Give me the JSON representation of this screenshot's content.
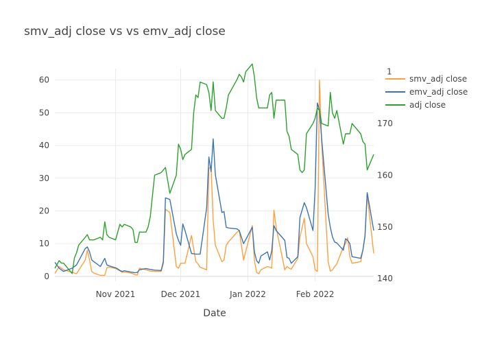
{
  "chart_data": {
    "type": "line",
    "title": "smv_adj close vs vs emv_adj close",
    "xlabel": "Date",
    "ylabel": "",
    "x_ticks": [
      {
        "label": "Nov 2021",
        "date": "2021-11-01"
      },
      {
        "label": "Dec 2021",
        "date": "2021-12-01"
      },
      {
        "label": "Jan 2022",
        "date": "2022-01-01"
      },
      {
        "label": "Feb 2022",
        "date": "2022-02-01"
      }
    ],
    "xlim": [
      "2021-10-04",
      "2022-02-28"
    ],
    "y_left": {
      "ylim": [
        -1.5,
        63.5
      ],
      "ticks": [
        0,
        10,
        20,
        30,
        40,
        50,
        60
      ]
    },
    "y_right": {
      "ylim": [
        139.5,
        180.6
      ],
      "ticks": [
        140,
        150,
        160,
        170
      ],
      "top_tick_label": "1"
    },
    "legend_position": "top-right",
    "grid": true,
    "series": [
      {
        "name": "smv_adj close",
        "color": "#ff9f3e",
        "axis": "left",
        "x": [
          "2021-10-04",
          "2021-10-06",
          "2021-10-08",
          "2021-10-12",
          "2021-10-14",
          "2021-10-18",
          "2021-10-19",
          "2021-10-20",
          "2021-10-21",
          "2021-10-22",
          "2021-10-25",
          "2021-10-27",
          "2021-10-28",
          "2021-10-29",
          "2021-11-01",
          "2021-11-02",
          "2021-11-03",
          "2021-11-04",
          "2021-11-05",
          "2021-11-08",
          "2021-11-09",
          "2021-11-10",
          "2021-11-11",
          "2021-11-12",
          "2021-11-15",
          "2021-11-17",
          "2021-11-19",
          "2021-11-22",
          "2021-11-23",
          "2021-11-24",
          "2021-11-26",
          "2021-11-29",
          "2021-11-30",
          "2021-12-01",
          "2021-12-02",
          "2021-12-03",
          "2021-12-06",
          "2021-12-08",
          "2021-12-09",
          "2021-12-10",
          "2021-12-13",
          "2021-12-14",
          "2021-12-15",
          "2021-12-16",
          "2021-12-17",
          "2021-12-20",
          "2021-12-21",
          "2021-12-22",
          "2021-12-23",
          "2021-12-27",
          "2021-12-28",
          "2021-12-30",
          "2022-01-03",
          "2022-01-04",
          "2022-01-05",
          "2022-01-06",
          "2022-01-07",
          "2022-01-10",
          "2022-01-11",
          "2022-01-12",
          "2022-01-13",
          "2022-01-14",
          "2022-01-18",
          "2022-01-19",
          "2022-01-20",
          "2022-01-21",
          "2022-01-24",
          "2022-01-25",
          "2022-01-27",
          "2022-01-28",
          "2022-01-31",
          "2022-02-01",
          "2022-02-02",
          "2022-02-03",
          "2022-02-04",
          "2022-02-07",
          "2022-02-08",
          "2022-02-09",
          "2022-02-10",
          "2022-02-11",
          "2022-02-14",
          "2022-02-15",
          "2022-02-16",
          "2022-02-17",
          "2022-02-18",
          "2022-02-22",
          "2022-02-23",
          "2022-02-24",
          "2022-02-25",
          "2022-02-28"
        ],
        "y": [
          0.9,
          3.0,
          2.0,
          1.2,
          0.8,
          5.0,
          8.0,
          5.0,
          1.5,
          1.0,
          0.3,
          0.3,
          2.6,
          2.8,
          2.4,
          2.0,
          1.7,
          1.2,
          1.3,
          1.0,
          0.8,
          0.5,
          0.4,
          2.5,
          2.0,
          1.6,
          1.5,
          1.5,
          4.0,
          20.5,
          19.5,
          3.0,
          2.5,
          4.0,
          4.0,
          4.0,
          12.5,
          4.5,
          3.8,
          2.8,
          2.0,
          33.0,
          33.5,
          17.0,
          9.5,
          4.5,
          5.0,
          9.5,
          10.5,
          13.5,
          14.0,
          5.0,
          15.5,
          5.0,
          1.2,
          0.8,
          2.0,
          3.0,
          2.8,
          2.5,
          20.2,
          15.0,
          2.0,
          3.0,
          2.5,
          2.2,
          5.5,
          12.0,
          17.8,
          10.0,
          6.0,
          2.0,
          1.5,
          60.0,
          41.0,
          4.5,
          1.6,
          2.0,
          3.0,
          3.8,
          9.0,
          10.0,
          11.8,
          6.0,
          4.0,
          4.5,
          8.0,
          12.0,
          25.0,
          7.0
        ]
      },
      {
        "name": "emv_adj close",
        "color": "#3a73b4",
        "axis": "left",
        "x": [
          "2021-10-04",
          "2021-10-06",
          "2021-10-08",
          "2021-10-12",
          "2021-10-14",
          "2021-10-18",
          "2021-10-19",
          "2021-10-20",
          "2021-10-21",
          "2021-10-22",
          "2021-10-25",
          "2021-10-27",
          "2021-10-28",
          "2021-10-29",
          "2021-11-01",
          "2021-11-02",
          "2021-11-03",
          "2021-11-04",
          "2021-11-05",
          "2021-11-08",
          "2021-11-09",
          "2021-11-10",
          "2021-11-11",
          "2021-11-12",
          "2021-11-15",
          "2021-11-17",
          "2021-11-19",
          "2021-11-22",
          "2021-11-23",
          "2021-11-24",
          "2021-11-26",
          "2021-11-29",
          "2021-11-30",
          "2021-12-01",
          "2021-12-02",
          "2021-12-03",
          "2021-12-06",
          "2021-12-08",
          "2021-12-09",
          "2021-12-10",
          "2021-12-13",
          "2021-12-14",
          "2021-12-15",
          "2021-12-16",
          "2021-12-17",
          "2021-12-20",
          "2021-12-21",
          "2021-12-22",
          "2021-12-23",
          "2021-12-27",
          "2021-12-28",
          "2021-12-30",
          "2022-01-03",
          "2022-01-04",
          "2022-01-05",
          "2022-01-06",
          "2022-01-07",
          "2022-01-10",
          "2022-01-11",
          "2022-01-12",
          "2022-01-13",
          "2022-01-14",
          "2022-01-18",
          "2022-01-19",
          "2022-01-20",
          "2022-01-21",
          "2022-01-24",
          "2022-01-25",
          "2022-01-27",
          "2022-01-28",
          "2022-01-31",
          "2022-02-01",
          "2022-02-02",
          "2022-02-03",
          "2022-02-04",
          "2022-02-07",
          "2022-02-08",
          "2022-02-09",
          "2022-02-10",
          "2022-02-11",
          "2022-02-14",
          "2022-02-15",
          "2022-02-16",
          "2022-02-17",
          "2022-02-18",
          "2022-02-22",
          "2022-02-23",
          "2022-02-24",
          "2022-02-25",
          "2022-02-28"
        ],
        "y": [
          4.3,
          2.5,
          1.5,
          2.5,
          3.5,
          8.5,
          9.0,
          7.5,
          5.0,
          4.5,
          3.0,
          5.5,
          3.5,
          3.2,
          2.6,
          2.3,
          1.8,
          1.5,
          1.7,
          1.3,
          1.2,
          1.1,
          1.2,
          2.0,
          2.4,
          2.1,
          1.9,
          1.8,
          4.5,
          24.0,
          23.5,
          13.0,
          11.0,
          9.5,
          16.0,
          14.0,
          7.0,
          6.8,
          6.8,
          6.8,
          21.0,
          36.5,
          32.0,
          42.0,
          31.0,
          19.5,
          19.8,
          15.0,
          14.8,
          14.5,
          14.0,
          10.0,
          15.0,
          7.5,
          4.8,
          4.0,
          6.2,
          7.5,
          5.0,
          7.8,
          15.5,
          14.0,
          11.0,
          5.8,
          5.5,
          4.0,
          6.0,
          18.0,
          22.5,
          21.0,
          14.0,
          27.0,
          53.0,
          51.0,
          42.0,
          19.0,
          15.0,
          12.0,
          10.5,
          10.2,
          8.0,
          11.5,
          11.0,
          10.0,
          6.0,
          5.5,
          8.0,
          12.5,
          25.6,
          14.0
        ]
      },
      {
        "name": "adj close",
        "color": "#2ca02c",
        "axis": "right",
        "x": [
          "2021-10-04",
          "2021-10-06",
          "2021-10-07",
          "2021-10-08",
          "2021-10-11",
          "2021-10-12",
          "2021-10-13",
          "2021-10-14",
          "2021-10-15",
          "2021-10-18",
          "2021-10-19",
          "2021-10-20",
          "2021-10-21",
          "2021-10-22",
          "2021-10-25",
          "2021-10-26",
          "2021-10-27",
          "2021-10-28",
          "2021-10-29",
          "2021-11-01",
          "2021-11-02",
          "2021-11-03",
          "2021-11-04",
          "2021-11-05",
          "2021-11-08",
          "2021-11-09",
          "2021-11-10",
          "2021-11-11",
          "2021-11-12",
          "2021-11-15",
          "2021-11-16",
          "2021-11-17",
          "2021-11-18",
          "2021-11-19",
          "2021-11-22",
          "2021-11-23",
          "2021-11-24",
          "2021-11-26",
          "2021-11-29",
          "2021-11-30",
          "2021-12-01",
          "2021-12-02",
          "2021-12-03",
          "2021-12-06",
          "2021-12-07",
          "2021-12-08",
          "2021-12-09",
          "2021-12-10",
          "2021-12-13",
          "2021-12-14",
          "2021-12-15",
          "2021-12-16",
          "2021-12-17",
          "2021-12-20",
          "2021-12-21",
          "2021-12-22",
          "2021-12-23",
          "2021-12-27",
          "2021-12-28",
          "2021-12-29",
          "2021-12-30",
          "2021-12-31",
          "2022-01-03",
          "2022-01-04",
          "2022-01-05",
          "2022-01-06",
          "2022-01-07",
          "2022-01-10",
          "2022-01-11",
          "2022-01-12",
          "2022-01-13",
          "2022-01-14",
          "2022-01-18",
          "2022-01-19",
          "2022-01-20",
          "2022-01-21",
          "2022-01-24",
          "2022-01-25",
          "2022-01-26",
          "2022-01-27",
          "2022-01-28",
          "2022-01-31",
          "2022-02-01",
          "2022-02-02",
          "2022-02-03",
          "2022-02-04",
          "2022-02-07",
          "2022-02-08",
          "2022-02-09",
          "2022-02-10",
          "2022-02-11",
          "2022-02-14",
          "2022-02-15",
          "2022-02-16",
          "2022-02-17",
          "2022-02-18",
          "2022-02-22",
          "2022-02-23",
          "2022-02-24",
          "2022-02-25",
          "2022-02-28"
        ],
        "y": [
          142.0,
          143.5,
          143.0,
          143.0,
          141.5,
          141.0,
          144.0,
          145.0,
          146.5,
          148.0,
          148.5,
          147.5,
          147.5,
          147.5,
          148.0,
          147.5,
          151.0,
          148.5,
          148.0,
          147.5,
          149.0,
          150.5,
          150.0,
          150.5,
          150.0,
          149.5,
          147.0,
          147.0,
          149.0,
          149.0,
          150.0,
          152.0,
          156.0,
          160.0,
          160.5,
          161.0,
          161.5,
          156.5,
          160.0,
          166.0,
          165.0,
          163.0,
          164.0,
          165.0,
          172.0,
          175.5,
          175.0,
          178.0,
          177.5,
          176.0,
          172.5,
          178.0,
          172.5,
          171.0,
          171.0,
          173.0,
          175.5,
          178.5,
          179.5,
          179.0,
          178.0,
          180.0,
          181.5,
          179.0,
          175.0,
          173.0,
          173.0,
          173.0,
          175.5,
          176.0,
          171.0,
          174.5,
          174.5,
          168.5,
          167.5,
          165.0,
          164.0,
          161.0,
          160.5,
          161.0,
          168.0,
          170.0,
          171.0,
          173.0,
          172.5,
          170.0,
          169.5,
          176.0,
          172.0,
          171.0,
          172.5,
          166.0,
          168.0,
          168.0,
          168.0,
          170.0,
          168.0,
          166.5,
          166.0,
          161.0,
          164.0
        ]
      }
    ]
  }
}
